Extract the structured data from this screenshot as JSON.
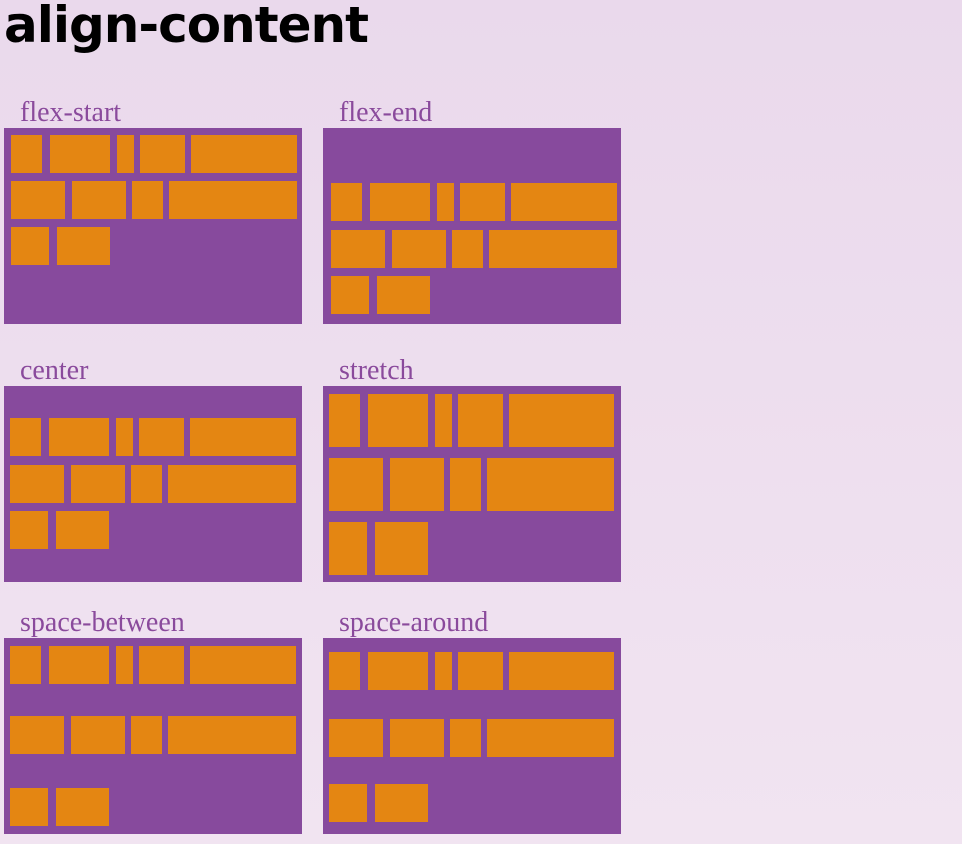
{
  "page": {
    "title": "align-content"
  },
  "colors": {
    "container": "#874a9d",
    "item": "#e48612",
    "label": "#8a4a9c"
  },
  "demos": [
    {
      "label": "flex-start"
    },
    {
      "label": "flex-end"
    },
    {
      "label": "center"
    },
    {
      "label": "stretch"
    },
    {
      "label": "space-between"
    },
    {
      "label": "space-around"
    }
  ]
}
